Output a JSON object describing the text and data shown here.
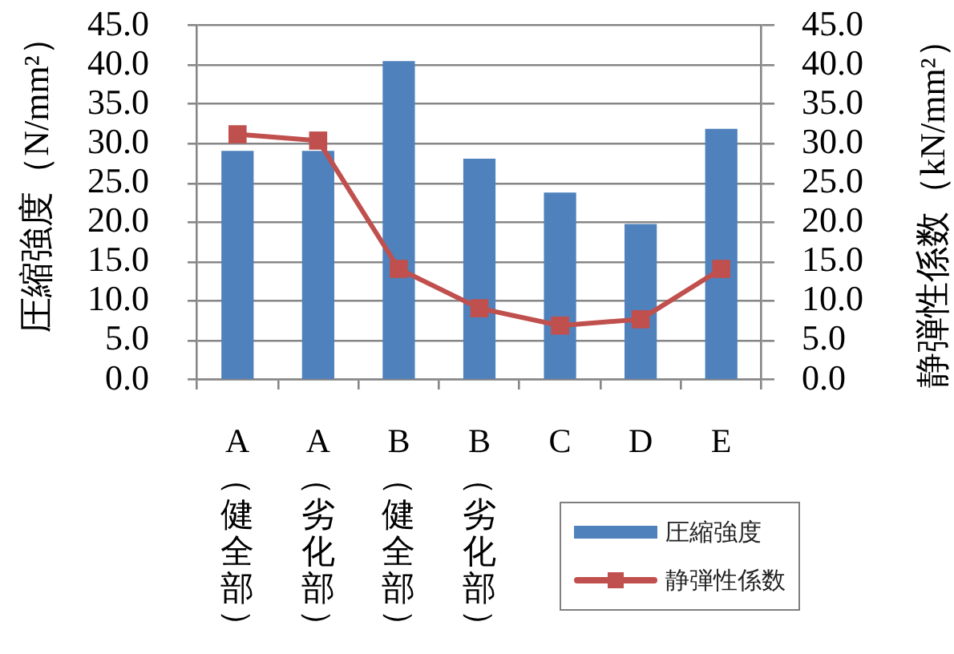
{
  "chart_data": {
    "type": "bar",
    "categories": [
      "A（健全部）",
      "A（劣化部）",
      "B（健全部）",
      "B（劣化部）",
      "C",
      "D",
      "E"
    ],
    "ylabel": "圧縮強度（N/mm²）",
    "y2label": "静弾性係数（kN/mm²）",
    "series": [
      {
        "name": "圧縮強度",
        "color": "#4f81bd",
        "values": [
          29.1,
          29.1,
          40.5,
          28.1,
          23.8,
          19.8,
          31.9
        ]
      },
      {
        "name": "静弾性係数",
        "type": "line",
        "axis": "y2",
        "color": "#c0504d",
        "values": [
          31.2,
          30.4,
          14.1,
          9.1,
          6.9,
          7.7,
          14.1
        ]
      }
    ],
    "ylim": [
      0,
      45
    ],
    "yticks": [
      {
        "value": 0,
        "label": "0.0"
      },
      {
        "value": 5,
        "label": "5.0"
      },
      {
        "value": 10,
        "label": "10.0"
      },
      {
        "value": 15,
        "label": "15.0"
      },
      {
        "value": 20,
        "label": "20.0"
      },
      {
        "value": 25,
        "label": "25.0"
      },
      {
        "value": 30,
        "label": "30.0"
      },
      {
        "value": 35,
        "label": "35.0"
      },
      {
        "value": 40,
        "label": "40.0"
      },
      {
        "value": 45,
        "label": "45.0"
      }
    ],
    "y2lim": [
      0,
      45
    ],
    "y2ticks": [
      {
        "value": 0,
        "label": "0.0"
      },
      {
        "value": 5,
        "label": "5.0"
      },
      {
        "value": 10,
        "label": "10.0"
      },
      {
        "value": 15,
        "label": "15.0"
      },
      {
        "value": 20,
        "label": "20.0"
      },
      {
        "value": 25,
        "label": "25.0"
      },
      {
        "value": 30,
        "label": "30.0"
      },
      {
        "value": 35,
        "label": "35.0"
      },
      {
        "value": 40,
        "label": "40.0"
      },
      {
        "value": 45,
        "label": "45.0"
      }
    ],
    "grid": "y",
    "legend": "bottom right",
    "marker": "square",
    "line_style": "solid"
  }
}
